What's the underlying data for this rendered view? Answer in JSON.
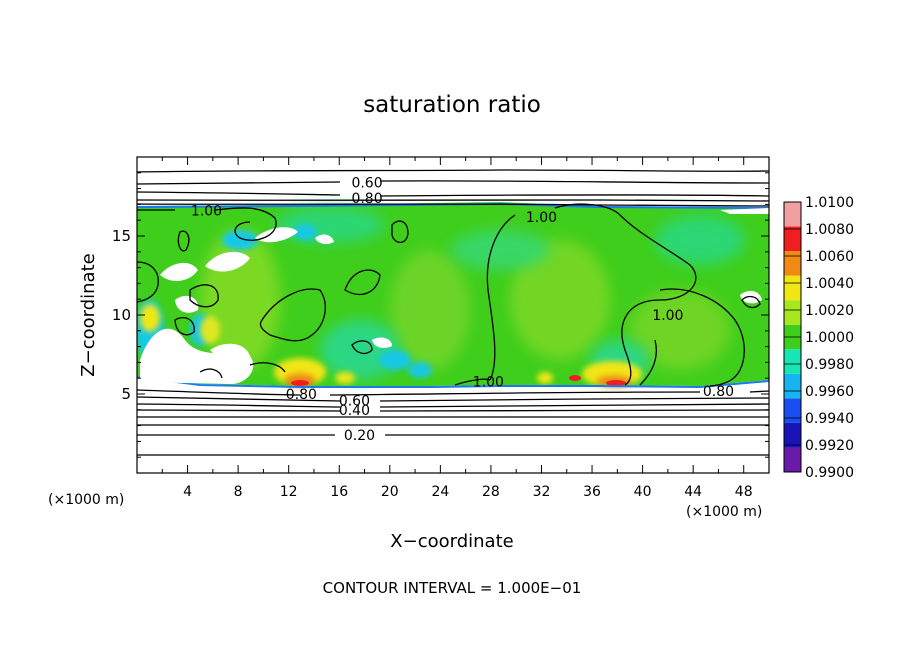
{
  "chart_data": {
    "type": "heatmap",
    "title": "saturation ratio",
    "xlabel": "X−coordinate",
    "ylabel": "Z−coordinate",
    "x_unit": "(×1000 m)",
    "z_unit": "(×1000 m)",
    "xlim": [
      0,
      50
    ],
    "ylim": [
      0,
      20
    ],
    "x_ticks": [
      4,
      8,
      12,
      16,
      20,
      24,
      28,
      32,
      36,
      40,
      44,
      48
    ],
    "y_ticks": [
      5,
      10,
      15
    ],
    "footer": "CONTOUR INTERVAL = 1.000E−01",
    "colorbar": {
      "levels": [
        0.99,
        0.992,
        0.994,
        0.996,
        0.998,
        1.0,
        1.002,
        1.004,
        1.006,
        1.008,
        1.01
      ],
      "labels": [
        "0.9900",
        "0.9920",
        "0.9940",
        "0.9960",
        "0.9980",
        "1.0000",
        "1.0020",
        "1.0040",
        "1.0060",
        "1.0080",
        "1.0100"
      ],
      "colors": [
        "#6a1aa8",
        "#1a14b8",
        "#1a4ef0",
        "#16b4f0",
        "#16e6b4",
        "#3fce1c",
        "#a8e61e",
        "#f0e614",
        "#f08a14",
        "#f01e1e",
        "#f0a0a0"
      ]
    },
    "contour_labels": [
      {
        "text": "0.60",
        "x": 18.2,
        "z": 18.4
      },
      {
        "text": "0.80",
        "x": 18.2,
        "z": 17.4
      },
      {
        "text": "1.00",
        "x": 5.5,
        "z": 16.6
      },
      {
        "text": "1.00",
        "x": 32.0,
        "z": 16.2
      },
      {
        "text": "1.00",
        "x": 42.0,
        "z": 10.0
      },
      {
        "text": "1.00",
        "x": 27.8,
        "z": 5.8
      },
      {
        "text": "0.80",
        "x": 13.0,
        "z": 5.0
      },
      {
        "text": "0.60",
        "x": 17.2,
        "z": 4.6
      },
      {
        "text": "0.40",
        "x": 17.2,
        "z": 4.0
      },
      {
        "text": "0.20",
        "x": 17.6,
        "z": 2.4
      },
      {
        "text": "0.80",
        "x": 46.0,
        "z": 5.2
      }
    ]
  }
}
